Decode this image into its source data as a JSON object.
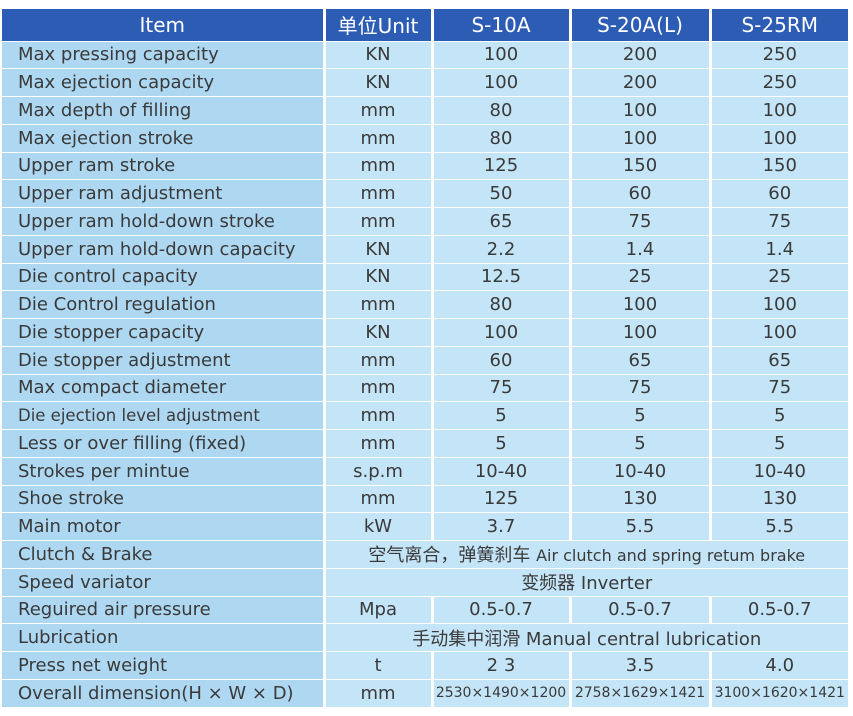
{
  "headers": {
    "item": "Item",
    "unit": "单位Unit",
    "model_a": "S-10A",
    "model_b": "S-20A(L)",
    "model_c": "S-25RM"
  },
  "rows": [
    {
      "label": "Max pressing capacity",
      "unit": "KN",
      "a": "100",
      "b": "200",
      "c": "250"
    },
    {
      "label": "Max ejection capacity",
      "unit": "KN",
      "a": "100",
      "b": "200",
      "c": "250"
    },
    {
      "label": "Max depth of filling",
      "unit": "mm",
      "a": "80",
      "b": "100",
      "c": "100"
    },
    {
      "label": "Max ejection stroke",
      "unit": "mm",
      "a": "80",
      "b": "100",
      "c": "100"
    },
    {
      "label": "Upper ram stroke",
      "unit": "mm",
      "a": "125",
      "b": "150",
      "c": "150"
    },
    {
      "label": "Upper ram adjustment",
      "unit": "mm",
      "a": "50",
      "b": "60",
      "c": "60"
    },
    {
      "label": "Upper ram hold-down stroke",
      "unit": "mm",
      "a": "65",
      "b": "75",
      "c": "75"
    },
    {
      "label": "Upper ram hold-down capacity",
      "unit": "KN",
      "a": "2.2",
      "b": "1.4",
      "c": "1.4"
    },
    {
      "label": "Die control capacity",
      "unit": "KN",
      "a": "12.5",
      "b": "25",
      "c": "25"
    },
    {
      "label": "Die Control regulation",
      "unit": "mm",
      "a": "80",
      "b": "100",
      "c": "100"
    },
    {
      "label": "Die stopper capacity",
      "unit": "KN",
      "a": "100",
      "b": "100",
      "c": "100"
    },
    {
      "label": "Die stopper adjustment",
      "unit": "mm",
      "a": "60",
      "b": "65",
      "c": "65"
    },
    {
      "label": "Max compact diameter",
      "unit": "mm",
      "a": "75",
      "b": "75",
      "c": "75"
    },
    {
      "label": "Die ejection level adjustment",
      "unit": "mm",
      "a": "5",
      "b": "5",
      "c": "5"
    },
    {
      "label": "Less or over filling (fixed)",
      "unit": "mm",
      "a": "5",
      "b": "5",
      "c": "5"
    },
    {
      "label": "Strokes per mintue",
      "unit": "s.p.m",
      "a": "10-40",
      "b": "10-40",
      "c": "10-40"
    },
    {
      "label": "Shoe stroke",
      "unit": "mm",
      "a": "125",
      "b": "130",
      "c": "130"
    },
    {
      "label": "Main motor",
      "unit": "kW",
      "a": "3.7",
      "b": "5.5",
      "c": "5.5"
    }
  ],
  "clutch": {
    "label": "Clutch & Brake",
    "value_cn": "空气离合，弹簧刹车",
    "value_en": "Air clutch and spring retum brake"
  },
  "speed": {
    "label": "Speed variator",
    "value": "变频器 Inverter"
  },
  "air": {
    "label": "Reguired air pressure",
    "unit": "Mpa",
    "a": "0.5-0.7",
    "b": "0.5-0.7",
    "c": "0.5-0.7"
  },
  "lube": {
    "label": "Lubrication",
    "value": "手动集中润滑 Manual central lubrication"
  },
  "weight": {
    "label": "Press net weight",
    "unit": "t",
    "a": "2 3",
    "b": "3.5",
    "c": "4.0"
  },
  "dimension": {
    "label": "Overall dimension(H × W × D)",
    "unit": "mm",
    "a": "2530×1490×1200",
    "b": "2758×1629×1421",
    "c": "3100×1620×1421"
  }
}
